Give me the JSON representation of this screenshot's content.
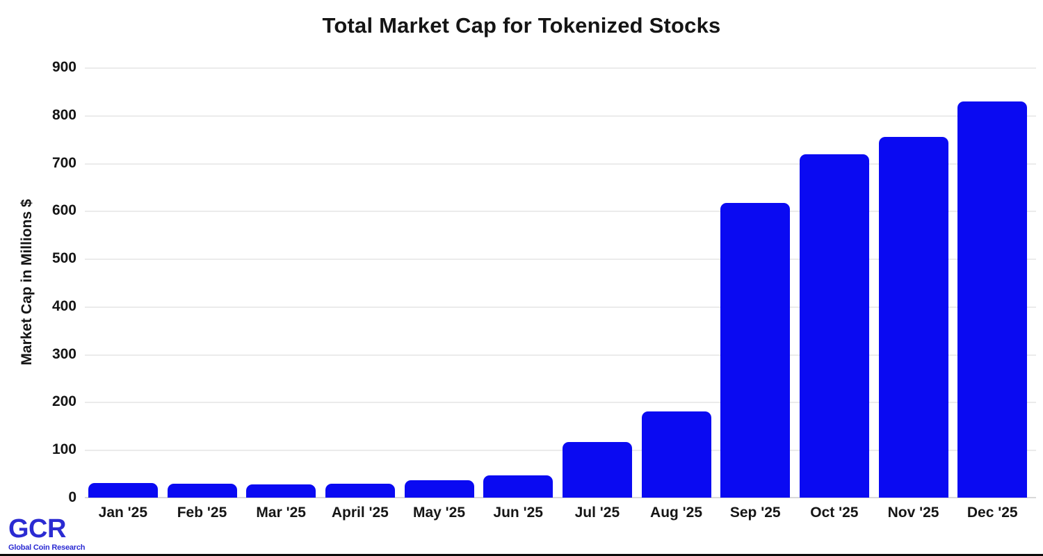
{
  "chart_data": {
    "type": "bar",
    "title": "Total Market Cap for Tokenized Stocks",
    "ylabel": "Market Cap in Millions $",
    "xlabel": "",
    "categories": [
      "Jan '25",
      "Feb '25",
      "Mar '25",
      "April '25",
      "May '25",
      "Jun '25",
      "Jul '25",
      "Aug '25",
      "Sep '25",
      "Oct '25",
      "Nov '25",
      "Dec '25"
    ],
    "values": [
      30,
      29,
      27,
      29,
      36,
      47,
      116,
      181,
      617,
      718,
      754,
      829
    ],
    "ylim": [
      0,
      900
    ],
    "yticks": [
      0,
      100,
      200,
      300,
      400,
      500,
      600,
      700,
      800,
      900
    ],
    "grid": "horizontal",
    "legend_position": "none",
    "bar_color": "#0a0af2"
  },
  "branding": {
    "logo_text": "GCR",
    "logo_subtext": "Global Coin Research",
    "logo_color": "#2b2bd2"
  },
  "colors": {
    "background": "#ffffff",
    "text": "#151515",
    "gridline": "#ebebeb",
    "axis_line": "#d9d9d9",
    "bottom_border": "#0a0a0a"
  }
}
